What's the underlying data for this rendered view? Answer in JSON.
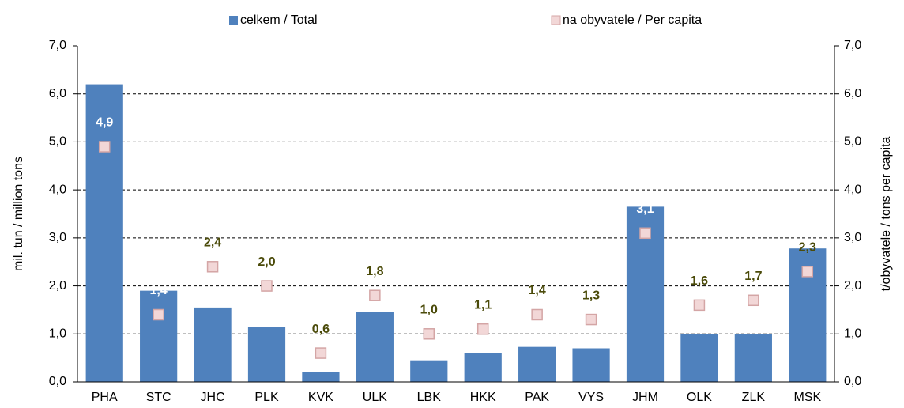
{
  "chart_data": {
    "type": "bar",
    "categories": [
      "PHA",
      "STC",
      "JHC",
      "PLK",
      "KVK",
      "ULK",
      "LBK",
      "HKK",
      "PAK",
      "VYS",
      "JHM",
      "OLK",
      "ZLK",
      "MSK"
    ],
    "series": [
      {
        "name": "celkem / Total",
        "color": "#4f81bd",
        "values": [
          6.2,
          1.9,
          1.55,
          1.15,
          0.2,
          1.45,
          0.45,
          0.6,
          0.73,
          0.7,
          3.65,
          1.0,
          1.0,
          2.78
        ]
      },
      {
        "name": "na obyvatele / Per capita",
        "color": "#f2d7d7",
        "axis": "y2",
        "values": [
          4.9,
          1.4,
          2.4,
          2.0,
          0.6,
          1.8,
          1.0,
          1.1,
          1.4,
          1.3,
          3.1,
          1.6,
          1.7,
          2.3
        ],
        "value_labels": [
          "4,9",
          "1,4",
          "2,4",
          "2,0",
          "0,6",
          "1,8",
          "1,0",
          "1,1",
          "1,4",
          "1,3",
          "3,1",
          "1,6",
          "1,7",
          "2,3"
        ]
      }
    ],
    "ylabel": "mil. tun / million tons",
    "y2label": "t/obyvatele / tons per capita",
    "ylim": [
      0,
      7
    ],
    "yticks": [
      {
        "value": 0,
        "label": "0,0"
      },
      {
        "value": 1,
        "label": "1,0"
      },
      {
        "value": 2,
        "label": "2,0"
      },
      {
        "value": 3,
        "label": "3,0"
      },
      {
        "value": 4,
        "label": "4,0"
      },
      {
        "value": 5,
        "label": "5,0"
      },
      {
        "value": 6,
        "label": "6,0"
      },
      {
        "value": 7,
        "label": "7,0"
      }
    ],
    "y2lim": [
      0,
      7
    ],
    "y2ticks": [
      {
        "value": 0,
        "label": "0,0"
      },
      {
        "value": 1,
        "label": "1,0"
      },
      {
        "value": 2,
        "label": "2,0"
      },
      {
        "value": 3,
        "label": "3,0"
      },
      {
        "value": 4,
        "label": "4,0"
      },
      {
        "value": 5,
        "label": "5,0"
      },
      {
        "value": 6,
        "label": "6,0"
      },
      {
        "value": 7,
        "label": "7,0"
      }
    ],
    "grid": true,
    "legend": "top"
  }
}
